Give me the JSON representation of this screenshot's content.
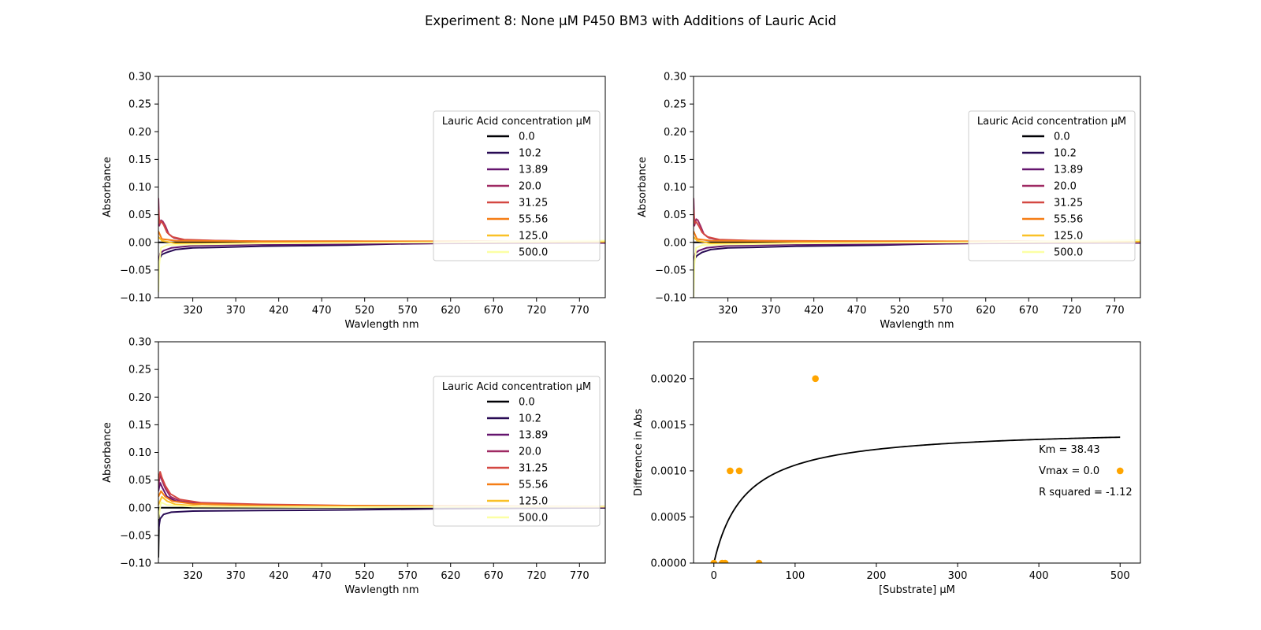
{
  "suptitle": "Experiment 8: None μM P450 BM3 with Additions of Lauric Acid",
  "chart_data": [
    {
      "type": "line",
      "panel": "top-left",
      "xlabel": "Wavlength nm",
      "ylabel": "Absorbance",
      "xlim": [
        280,
        800
      ],
      "ylim": [
        -0.1,
        0.3
      ],
      "xticks": [
        "320",
        "370",
        "420",
        "470",
        "520",
        "570",
        "620",
        "670",
        "720",
        "770"
      ],
      "yticks": [
        "−0.10",
        "−0.05",
        "0.00",
        "0.05",
        "0.10",
        "0.15",
        "0.20",
        "0.25",
        "0.30"
      ],
      "legend_title": "Lauric Acid concentration µM",
      "legend_position": "center-right",
      "grid": false,
      "series": [
        {
          "name": "0.0",
          "color": "#000004",
          "points": [
            [
              280,
              0.0
            ],
            [
              800,
              0.0
            ]
          ]
        },
        {
          "name": "10.2",
          "color": "#280b54",
          "points": [
            [
              280,
              -0.06
            ],
            [
              281,
              -0.03
            ],
            [
              284,
              -0.022
            ],
            [
              290,
              -0.018
            ],
            [
              300,
              -0.013
            ],
            [
              320,
              -0.01
            ],
            [
              350,
              -0.009
            ],
            [
              400,
              -0.007
            ],
            [
              450,
              -0.006
            ],
            [
              500,
              -0.005
            ],
            [
              550,
              -0.003
            ],
            [
              600,
              -0.002
            ],
            [
              650,
              -0.001
            ],
            [
              700,
              -0.001
            ],
            [
              800,
              0.0
            ]
          ]
        },
        {
          "name": "13.89",
          "color": "#65156e",
          "points": [
            [
              280,
              -0.04
            ],
            [
              282,
              -0.02
            ],
            [
              286,
              -0.015
            ],
            [
              295,
              -0.01
            ],
            [
              320,
              -0.006
            ],
            [
              400,
              -0.004
            ],
            [
              500,
              -0.003
            ],
            [
              600,
              -0.002
            ],
            [
              800,
              -0.001
            ]
          ]
        },
        {
          "name": "20.0",
          "color": "#9f2a63",
          "points": [
            [
              280,
              0.08
            ],
            [
              281,
              0.03
            ],
            [
              283,
              0.04
            ],
            [
              285,
              0.038
            ],
            [
              288,
              0.03
            ],
            [
              292,
              0.015
            ],
            [
              298,
              0.008
            ],
            [
              310,
              0.004
            ],
            [
              350,
              0.003
            ],
            [
              400,
              0.002
            ],
            [
              500,
              0.002
            ],
            [
              600,
              0.001
            ],
            [
              800,
              0.001
            ]
          ]
        },
        {
          "name": "31.25",
          "color": "#d44842",
          "points": [
            [
              280,
              0.06
            ],
            [
              281,
              0.035
            ],
            [
              283,
              0.038
            ],
            [
              286,
              0.032
            ],
            [
              290,
              0.018
            ],
            [
              296,
              0.01
            ],
            [
              310,
              0.005
            ],
            [
              350,
              0.003
            ],
            [
              400,
              0.002
            ],
            [
              500,
              0.002
            ],
            [
              800,
              0.001
            ]
          ]
        },
        {
          "name": "55.56",
          "color": "#f57d15",
          "points": [
            [
              280,
              0.02
            ],
            [
              284,
              0.006
            ],
            [
              300,
              0.003
            ],
            [
              400,
              0.002
            ],
            [
              600,
              0.002
            ],
            [
              800,
              0.002
            ]
          ]
        },
        {
          "name": "125.0",
          "color": "#fac127",
          "points": [
            [
              280,
              0.01
            ],
            [
              284,
              0.003
            ],
            [
              300,
              -0.002
            ],
            [
              330,
              -0.002
            ],
            [
              400,
              -0.001
            ],
            [
              600,
              0.0
            ],
            [
              800,
              0.001
            ]
          ]
        },
        {
          "name": "500.0",
          "color": "#fcffa4",
          "points": [
            [
              280,
              -0.09
            ],
            [
              281,
              -0.04
            ],
            [
              283,
              -0.01
            ],
            [
              290,
              -0.005
            ],
            [
              320,
              -0.004
            ],
            [
              400,
              -0.002
            ],
            [
              600,
              0.0
            ],
            [
              700,
              0.002
            ],
            [
              800,
              0.003
            ]
          ]
        }
      ]
    },
    {
      "type": "line",
      "panel": "top-right",
      "xlabel": "Wavlength nm",
      "ylabel": "Absorbance",
      "xlim": [
        280,
        800
      ],
      "ylim": [
        -0.1,
        0.3
      ],
      "xticks": [
        "320",
        "370",
        "420",
        "470",
        "520",
        "570",
        "620",
        "670",
        "720",
        "770"
      ],
      "yticks": [
        "−0.10",
        "−0.05",
        "0.00",
        "0.05",
        "0.10",
        "0.15",
        "0.20",
        "0.25",
        "0.30"
      ],
      "legend_title": "Lauric Acid concentration µM",
      "legend_position": "center-right",
      "grid": false,
      "series": [
        {
          "name": "0.0",
          "color": "#000004",
          "points": [
            [
              280,
              0.0
            ],
            [
              800,
              0.0
            ]
          ]
        },
        {
          "name": "10.2",
          "color": "#280b54",
          "points": [
            [
              280,
              -0.06
            ],
            [
              281,
              -0.03
            ],
            [
              284,
              -0.024
            ],
            [
              290,
              -0.018
            ],
            [
              300,
              -0.013
            ],
            [
              320,
              -0.01
            ],
            [
              350,
              -0.009
            ],
            [
              400,
              -0.007
            ],
            [
              450,
              -0.006
            ],
            [
              500,
              -0.005
            ],
            [
              550,
              -0.003
            ],
            [
              600,
              -0.002
            ],
            [
              700,
              -0.001
            ],
            [
              800,
              0.0
            ]
          ]
        },
        {
          "name": "13.89",
          "color": "#65156e",
          "points": [
            [
              280,
              -0.04
            ],
            [
              282,
              -0.02
            ],
            [
              286,
              -0.015
            ],
            [
              295,
              -0.01
            ],
            [
              320,
              -0.006
            ],
            [
              400,
              -0.004
            ],
            [
              500,
              -0.003
            ],
            [
              600,
              -0.002
            ],
            [
              800,
              -0.001
            ]
          ]
        },
        {
          "name": "20.0",
          "color": "#9f2a63",
          "points": [
            [
              280,
              0.08
            ],
            [
              281,
              0.03
            ],
            [
              283,
              0.042
            ],
            [
              285,
              0.04
            ],
            [
              288,
              0.03
            ],
            [
              292,
              0.015
            ],
            [
              298,
              0.008
            ],
            [
              310,
              0.004
            ],
            [
              350,
              0.003
            ],
            [
              400,
              0.002
            ],
            [
              500,
              0.002
            ],
            [
              800,
              0.001
            ]
          ]
        },
        {
          "name": "31.25",
          "color": "#d44842",
          "points": [
            [
              280,
              0.06
            ],
            [
              281,
              0.035
            ],
            [
              283,
              0.037
            ],
            [
              286,
              0.03
            ],
            [
              290,
              0.018
            ],
            [
              296,
              0.01
            ],
            [
              310,
              0.005
            ],
            [
              350,
              0.003
            ],
            [
              500,
              0.002
            ],
            [
              800,
              0.001
            ]
          ]
        },
        {
          "name": "55.56",
          "color": "#f57d15",
          "points": [
            [
              280,
              0.02
            ],
            [
              284,
              0.006
            ],
            [
              300,
              0.003
            ],
            [
              400,
              0.002
            ],
            [
              800,
              0.002
            ]
          ]
        },
        {
          "name": "125.0",
          "color": "#fac127",
          "points": [
            [
              280,
              0.01
            ],
            [
              284,
              0.003
            ],
            [
              300,
              -0.002
            ],
            [
              330,
              -0.002
            ],
            [
              400,
              -0.001
            ],
            [
              600,
              0.0
            ],
            [
              800,
              0.001
            ]
          ]
        },
        {
          "name": "500.0",
          "color": "#fcffa4",
          "points": [
            [
              280,
              -0.1
            ],
            [
              281,
              -0.04
            ],
            [
              283,
              -0.01
            ],
            [
              290,
              -0.005
            ],
            [
              320,
              -0.004
            ],
            [
              400,
              -0.002
            ],
            [
              600,
              0.0
            ],
            [
              700,
              0.002
            ],
            [
              800,
              0.004
            ]
          ]
        }
      ]
    },
    {
      "type": "line",
      "panel": "bottom-left",
      "xlabel": "Wavlength nm",
      "ylabel": "Absorbance",
      "xlim": [
        280,
        800
      ],
      "ylim": [
        -0.1,
        0.3
      ],
      "xticks": [
        "320",
        "370",
        "420",
        "470",
        "520",
        "570",
        "620",
        "670",
        "720",
        "770"
      ],
      "yticks": [
        "−0.10",
        "−0.05",
        "0.00",
        "0.05",
        "0.10",
        "0.15",
        "0.20",
        "0.25",
        "0.30"
      ],
      "legend_title": "Lauric Acid concentration µM",
      "legend_position": "center-right",
      "grid": false,
      "series": [
        {
          "name": "0.0",
          "color": "#000004",
          "points": [
            [
              280,
              -0.09
            ],
            [
              281,
              0.0
            ],
            [
              800,
              0.0
            ]
          ]
        },
        {
          "name": "10.2",
          "color": "#280b54",
          "points": [
            [
              280,
              -0.04
            ],
            [
              282,
              -0.02
            ],
            [
              286,
              -0.012
            ],
            [
              295,
              -0.008
            ],
            [
              320,
              -0.006
            ],
            [
              400,
              -0.005
            ],
            [
              500,
              -0.004
            ],
            [
              600,
              -0.002
            ],
            [
              800,
              0.0
            ]
          ]
        },
        {
          "name": "13.89",
          "color": "#65156e",
          "points": [
            [
              280,
              0.03
            ],
            [
              282,
              0.045
            ],
            [
              285,
              0.035
            ],
            [
              290,
              0.02
            ],
            [
              300,
              0.012
            ],
            [
              320,
              0.008
            ],
            [
              400,
              0.005
            ],
            [
              500,
              0.003
            ],
            [
              800,
              0.001
            ]
          ]
        },
        {
          "name": "20.0",
          "color": "#9f2a63",
          "points": [
            [
              280,
              0.04
            ],
            [
              282,
              0.06
            ],
            [
              284,
              0.05
            ],
            [
              288,
              0.035
            ],
            [
              294,
              0.02
            ],
            [
              305,
              0.012
            ],
            [
              330,
              0.008
            ],
            [
              400,
              0.005
            ],
            [
              500,
              0.003
            ],
            [
              800,
              0.002
            ]
          ]
        },
        {
          "name": "31.25",
          "color": "#d44842",
          "points": [
            [
              280,
              0.05
            ],
            [
              282,
              0.065
            ],
            [
              284,
              0.055
            ],
            [
              288,
              0.04
            ],
            [
              294,
              0.025
            ],
            [
              305,
              0.015
            ],
            [
              330,
              0.009
            ],
            [
              400,
              0.006
            ],
            [
              500,
              0.004
            ],
            [
              800,
              0.002
            ]
          ]
        },
        {
          "name": "55.56",
          "color": "#f57d15",
          "points": [
            [
              280,
              0.02
            ],
            [
              283,
              0.03
            ],
            [
              288,
              0.02
            ],
            [
              296,
              0.012
            ],
            [
              320,
              0.007
            ],
            [
              400,
              0.004
            ],
            [
              800,
              0.002
            ]
          ]
        },
        {
          "name": "125.0",
          "color": "#fac127",
          "points": [
            [
              280,
              0.005
            ],
            [
              284,
              0.02
            ],
            [
              290,
              0.012
            ],
            [
              300,
              0.006
            ],
            [
              330,
              0.003
            ],
            [
              400,
              0.002
            ],
            [
              800,
              0.002
            ]
          ]
        },
        {
          "name": "500.0",
          "color": "#fcffa4",
          "points": [
            [
              280,
              -0.02
            ],
            [
              283,
              0.01
            ],
            [
              290,
              0.005
            ],
            [
              320,
              0.002
            ],
            [
              500,
              0.001
            ],
            [
              800,
              0.002
            ]
          ]
        }
      ]
    },
    {
      "type": "scatter",
      "panel": "bottom-right",
      "xlabel": "[Substrate] µM",
      "ylabel": "Difference in Abs",
      "xlim": [
        -25,
        525
      ],
      "ylim": [
        0.0,
        0.0024
      ],
      "xticks": [
        "0",
        "100",
        "200",
        "300",
        "400",
        "500"
      ],
      "yticks": [
        "0.0000",
        "0.0005",
        "0.0010",
        "0.0015",
        "0.0020"
      ],
      "grid": false,
      "points_color": "#ffa500",
      "points": [
        [
          0,
          0.0
        ],
        [
          10.2,
          0.0
        ],
        [
          13.89,
          0.0
        ],
        [
          20.0,
          0.001
        ],
        [
          31.25,
          0.001
        ],
        [
          55.56,
          0.0
        ],
        [
          125.0,
          0.002
        ],
        [
          500.0,
          0.001
        ]
      ],
      "fit": {
        "color": "#000000",
        "km": 38.43,
        "vmax": 0.00147,
        "x_range": [
          0,
          500
        ]
      },
      "annotations": [
        "Km = 38.43",
        "Vmax = 0.0",
        "R squared = -1.12"
      ]
    }
  ]
}
